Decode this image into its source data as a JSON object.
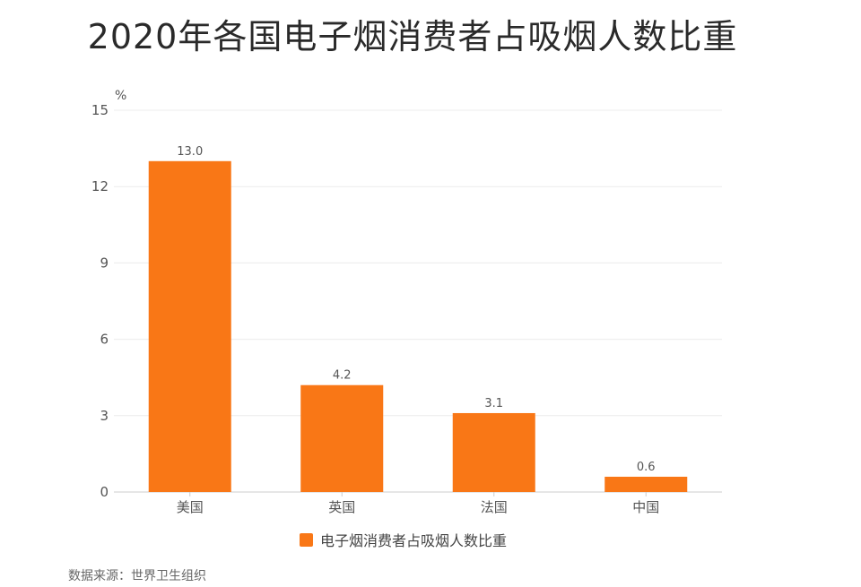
{
  "title": "2020年各国电子烟消费者占吸烟人数比重",
  "source": "数据来源：世界卫生组织",
  "colors": {
    "bar": "#F97716",
    "grid": "#ECECEC",
    "axis": "#CCCCCC",
    "text": "#555555"
  },
  "chart_data": {
    "type": "bar",
    "title": "2020年各国电子烟消费者占吸烟人数比重",
    "categories": [
      "美国",
      "英国",
      "法国",
      "中国"
    ],
    "series": [
      {
        "name": "电子烟消费者占吸烟人数比重",
        "values": [
          13.0,
          4.2,
          3.1,
          0.6
        ]
      }
    ],
    "value_labels": [
      "13.0",
      "4.2",
      "3.1",
      "0.6"
    ],
    "ylabel": "%",
    "xlabel": "",
    "ylim": [
      0,
      15
    ],
    "yticks": [
      0,
      3,
      6,
      9,
      12,
      15
    ],
    "grid": true,
    "legend": "bottom-center"
  }
}
